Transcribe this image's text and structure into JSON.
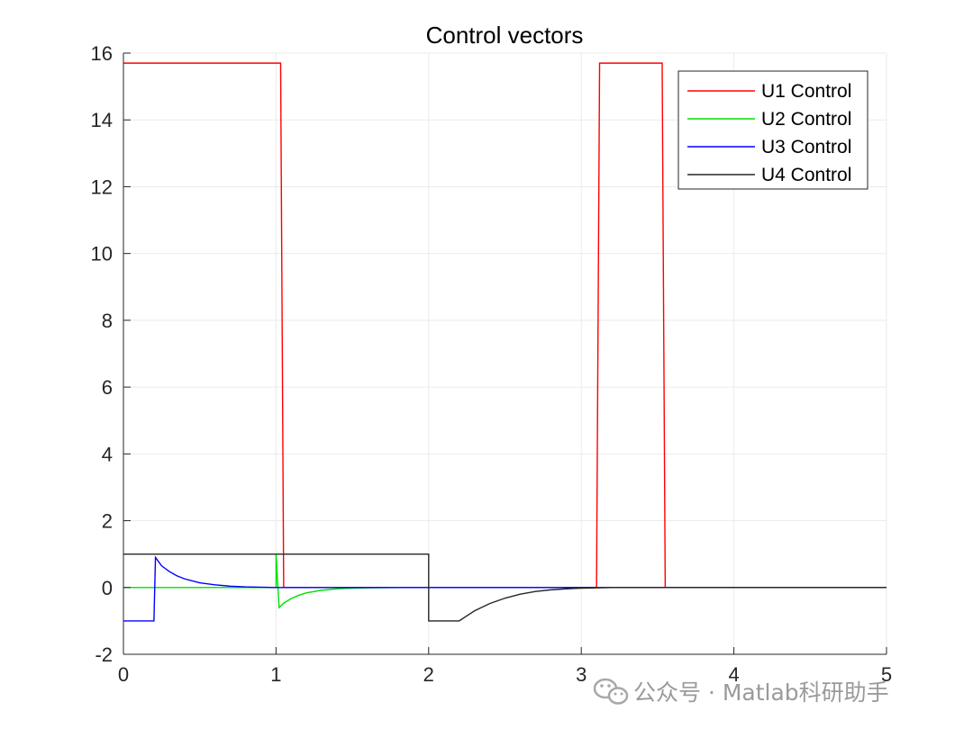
{
  "chart_data": {
    "type": "line",
    "title": "Control vectors",
    "xlabel": "",
    "ylabel": "",
    "xlim": [
      0,
      5
    ],
    "ylim": [
      -2,
      16
    ],
    "xticks": [
      "0",
      "1",
      "2",
      "3",
      "4",
      "5"
    ],
    "yticks": [
      "-2",
      "0",
      "2",
      "4",
      "6",
      "8",
      "10",
      "12",
      "14",
      "16"
    ],
    "grid": true,
    "legend_position": "top-right",
    "series": [
      {
        "name": "U1 Control",
        "color": "#ff0000",
        "x": [
          0,
          1.03,
          1.05,
          3.1,
          3.12,
          3.53,
          3.55,
          5
        ],
        "y": [
          15.7,
          15.7,
          0,
          0,
          15.7,
          15.7,
          0,
          0
        ]
      },
      {
        "name": "U2 Control",
        "color": "#00e000",
        "x": [
          0,
          1.0,
          1.0,
          1.02,
          1.05,
          1.1,
          1.15,
          1.2,
          1.3,
          1.4,
          1.5,
          1.6,
          1.8,
          2.0,
          5
        ],
        "y": [
          0,
          0,
          1.0,
          -0.6,
          -0.47,
          -0.33,
          -0.23,
          -0.16,
          -0.08,
          -0.04,
          -0.02,
          -0.01,
          0,
          0,
          0
        ]
      },
      {
        "name": "U3 Control",
        "color": "#0000ff",
        "x": [
          0,
          0.2,
          0.21,
          0.25,
          0.3,
          0.35,
          0.4,
          0.5,
          0.6,
          0.7,
          0.8,
          1.0,
          1.2,
          5
        ],
        "y": [
          -1,
          -1,
          0.9,
          0.65,
          0.48,
          0.35,
          0.26,
          0.14,
          0.08,
          0.04,
          0.02,
          0,
          0,
          0
        ]
      },
      {
        "name": "U4 Control",
        "color": "#262626",
        "x": [
          0,
          2.0,
          2.0,
          2.2,
          2.25,
          2.3,
          2.4,
          2.5,
          2.6,
          2.7,
          2.8,
          2.9,
          3.0,
          3.2,
          5
        ],
        "y": [
          1,
          1,
          -1,
          -1,
          -0.85,
          -0.7,
          -0.48,
          -0.32,
          -0.2,
          -0.12,
          -0.07,
          -0.04,
          -0.02,
          0,
          0
        ]
      }
    ]
  },
  "watermark": {
    "text": "公众号 · Matlab科研助手",
    "icon": "wechat-icon"
  }
}
